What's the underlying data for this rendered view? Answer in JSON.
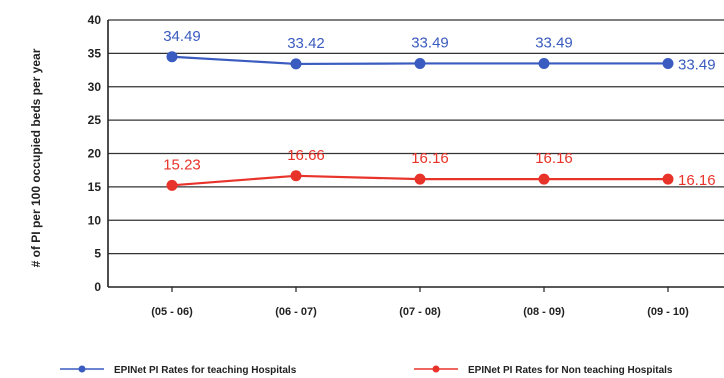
{
  "chart_data": {
    "type": "line",
    "ylabel": "# of PI per 100 occupied beds per year",
    "categories": [
      "(05 - 06)",
      "(06 - 07)",
      "(07 - 08)",
      "(08 - 09)",
      "(09 - 10)"
    ],
    "ylim": [
      0,
      40
    ],
    "yticks": [
      0,
      5,
      10,
      15,
      20,
      25,
      30,
      35,
      40
    ],
    "grid": true,
    "legend_position": "bottom",
    "series": [
      {
        "name": "EPINet PI Rates for teaching Hospitals",
        "values": [
          34.49,
          33.42,
          33.49,
          33.49,
          33.49
        ],
        "labels": [
          "34.49",
          "33.42",
          "33.49",
          "33.49",
          "33.49"
        ],
        "color": "#3a5bbf"
      },
      {
        "name": "EPINet PI Rates for Non teaching Hospitals",
        "values": [
          15.23,
          16.66,
          16.16,
          16.16,
          16.16
        ],
        "labels": [
          "15.23",
          "16.66",
          "16.16",
          "16.16",
          "16.16"
        ],
        "color": "#e8332a"
      }
    ]
  }
}
